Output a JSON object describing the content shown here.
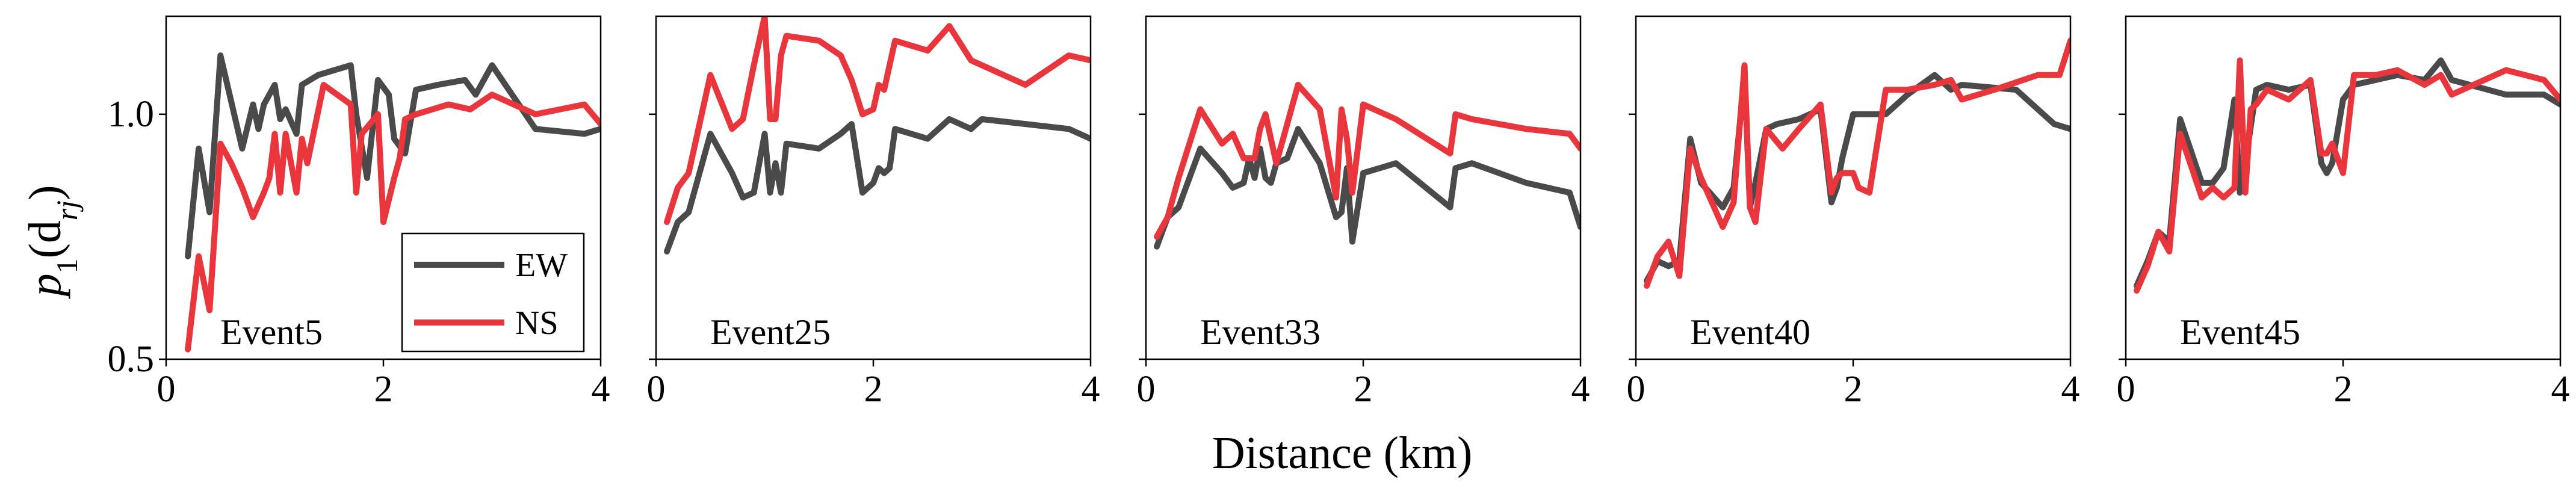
{
  "chart_data": {
    "type": "line",
    "ylabel_main": "p",
    "ylabel_sub": "1",
    "ylabel_arg": "(d",
    "ylabel_arg_sub": "rj",
    "ylabel_close": ")",
    "xlabel": "Distance (km)",
    "xlim": [
      0,
      4
    ],
    "ylim": [
      0.5,
      1.2
    ],
    "xticks": [
      0,
      2,
      4
    ],
    "xtick_labels": [
      "0",
      "2",
      "4"
    ],
    "yticks": [
      0.5,
      1.0
    ],
    "ytick_labels": [
      "0.5",
      "1.0"
    ],
    "colors": {
      "EW": "#4a4a4a",
      "NS": "#e8363c"
    },
    "legend": {
      "entries": [
        "EW",
        "NS"
      ],
      "placement": "lower-right of first panel"
    },
    "panels": [
      {
        "title": "Event5",
        "series": [
          {
            "name": "EW",
            "x": [
              0.2,
              0.3,
              0.4,
              0.5,
              0.7,
              0.8,
              0.85,
              0.9,
              1.0,
              1.05,
              1.1,
              1.2,
              1.25,
              1.4,
              1.7,
              1.75,
              1.85,
              1.95,
              2.05,
              2.1,
              2.2,
              2.3,
              2.5,
              2.75,
              2.85,
              3.0,
              3.4,
              3.85,
              4.0
            ],
            "y": [
              0.71,
              0.93,
              0.8,
              1.12,
              0.93,
              1.02,
              0.97,
              1.02,
              1.06,
              0.99,
              1.01,
              0.96,
              1.06,
              1.08,
              1.1,
              1.0,
              0.87,
              1.07,
              1.04,
              0.95,
              0.92,
              1.05,
              1.06,
              1.07,
              1.04,
              1.1,
              0.97,
              0.96,
              0.97
            ]
          },
          {
            "name": "NS",
            "x": [
              0.2,
              0.3,
              0.4,
              0.5,
              0.6,
              0.7,
              0.8,
              0.9,
              0.95,
              1.0,
              1.05,
              1.1,
              1.2,
              1.25,
              1.3,
              1.45,
              1.7,
              1.75,
              1.8,
              1.95,
              2.0,
              2.1,
              2.15,
              2.2,
              2.3,
              2.6,
              2.8,
              3.0,
              3.4,
              3.85,
              4.0
            ],
            "y": [
              0.52,
              0.71,
              0.6,
              0.94,
              0.9,
              0.85,
              0.79,
              0.84,
              0.87,
              0.96,
              0.84,
              0.96,
              0.84,
              0.95,
              0.9,
              1.06,
              1.02,
              0.84,
              0.96,
              1.0,
              0.78,
              0.87,
              0.91,
              0.99,
              1.0,
              1.02,
              1.01,
              1.04,
              1.0,
              1.02,
              0.98
            ]
          }
        ]
      },
      {
        "title": "Event25",
        "series": [
          {
            "name": "EW",
            "x": [
              0.1,
              0.2,
              0.3,
              0.5,
              0.7,
              0.8,
              0.9,
              1.0,
              1.05,
              1.1,
              1.15,
              1.2,
              1.5,
              1.7,
              1.8,
              1.9,
              2.0,
              2.05,
              2.1,
              2.15,
              2.2,
              2.5,
              2.7,
              2.9,
              3.0,
              3.4,
              3.8,
              4.0
            ],
            "y": [
              0.72,
              0.78,
              0.8,
              0.96,
              0.88,
              0.83,
              0.84,
              0.96,
              0.84,
              0.9,
              0.84,
              0.94,
              0.93,
              0.96,
              0.98,
              0.84,
              0.86,
              0.89,
              0.88,
              0.89,
              0.97,
              0.95,
              0.99,
              0.97,
              0.99,
              0.98,
              0.97,
              0.95
            ]
          },
          {
            "name": "NS",
            "x": [
              0.1,
              0.2,
              0.3,
              0.5,
              0.7,
              0.8,
              0.9,
              1.0,
              1.05,
              1.1,
              1.15,
              1.2,
              1.5,
              1.7,
              1.8,
              1.9,
              2.0,
              2.05,
              2.1,
              2.2,
              2.5,
              2.7,
              2.9,
              3.0,
              3.4,
              3.8,
              4.0
            ],
            "y": [
              0.78,
              0.85,
              0.88,
              1.08,
              0.97,
              0.99,
              1.1,
              1.2,
              0.99,
              0.99,
              1.12,
              1.16,
              1.15,
              1.12,
              1.07,
              1.0,
              1.01,
              1.06,
              1.05,
              1.15,
              1.13,
              1.18,
              1.11,
              1.1,
              1.06,
              1.12,
              1.11
            ]
          }
        ]
      },
      {
        "title": "Event33",
        "series": [
          {
            "name": "EW",
            "x": [
              0.1,
              0.2,
              0.3,
              0.5,
              0.7,
              0.8,
              0.9,
              0.95,
              1.0,
              1.05,
              1.1,
              1.15,
              1.2,
              1.3,
              1.4,
              1.6,
              1.75,
              1.8,
              1.85,
              1.9,
              2.0,
              2.3,
              2.8,
              2.85,
              3.0,
              3.5,
              3.9,
              4.0
            ],
            "y": [
              0.73,
              0.79,
              0.81,
              0.93,
              0.88,
              0.85,
              0.86,
              0.91,
              0.87,
              0.93,
              0.87,
              0.86,
              0.9,
              0.91,
              0.97,
              0.9,
              0.79,
              0.8,
              0.89,
              0.74,
              0.88,
              0.9,
              0.81,
              0.89,
              0.9,
              0.86,
              0.84,
              0.77
            ]
          },
          {
            "name": "NS",
            "x": [
              0.1,
              0.2,
              0.3,
              0.5,
              0.7,
              0.8,
              0.9,
              1.0,
              1.05,
              1.1,
              1.2,
              1.3,
              1.4,
              1.6,
              1.75,
              1.8,
              1.85,
              1.9,
              2.0,
              2.3,
              2.8,
              2.85,
              3.0,
              3.5,
              3.9,
              4.0
            ],
            "y": [
              0.75,
              0.79,
              0.87,
              1.01,
              0.94,
              0.96,
              0.91,
              0.91,
              0.97,
              1.0,
              0.9,
              0.98,
              1.06,
              1.01,
              0.83,
              1.01,
              0.95,
              0.84,
              1.02,
              0.99,
              0.92,
              1.0,
              0.99,
              0.97,
              0.96,
              0.93
            ]
          }
        ]
      },
      {
        "title": "Event40",
        "series": [
          {
            "name": "EW",
            "x": [
              0.1,
              0.2,
              0.3,
              0.4,
              0.5,
              0.6,
              0.8,
              0.9,
              1.0,
              1.05,
              1.1,
              1.2,
              1.3,
              1.5,
              1.7,
              1.8,
              1.85,
              1.9,
              2.0,
              2.3,
              2.5,
              2.75,
              2.9,
              3.0,
              3.5,
              3.85,
              4.0
            ],
            "y": [
              0.66,
              0.7,
              0.69,
              0.7,
              0.95,
              0.86,
              0.81,
              0.85,
              1.08,
              0.81,
              0.86,
              0.97,
              0.98,
              0.99,
              1.01,
              0.82,
              0.85,
              0.91,
              1.0,
              1.0,
              1.04,
              1.08,
              1.05,
              1.06,
              1.05,
              0.98,
              0.97
            ]
          },
          {
            "name": "NS",
            "x": [
              0.1,
              0.2,
              0.3,
              0.4,
              0.5,
              0.6,
              0.8,
              0.9,
              1.0,
              1.05,
              1.1,
              1.2,
              1.35,
              1.5,
              1.7,
              1.8,
              1.85,
              1.9,
              2.0,
              2.05,
              2.15,
              2.3,
              2.5,
              2.75,
              2.9,
              3.0,
              3.3,
              3.7,
              3.9,
              4.0
            ],
            "y": [
              0.65,
              0.71,
              0.74,
              0.67,
              0.93,
              0.87,
              0.77,
              0.82,
              1.1,
              0.81,
              0.78,
              0.97,
              0.93,
              0.97,
              1.02,
              0.84,
              0.87,
              0.88,
              0.88,
              0.85,
              0.84,
              1.05,
              1.05,
              1.06,
              1.07,
              1.03,
              1.05,
              1.08,
              1.08,
              1.15
            ]
          }
        ]
      },
      {
        "title": "Event45",
        "series": [
          {
            "name": "EW",
            "x": [
              0.1,
              0.2,
              0.3,
              0.4,
              0.5,
              0.7,
              0.8,
              0.9,
              1.0,
              1.05,
              1.1,
              1.2,
              1.3,
              1.5,
              1.7,
              1.8,
              1.85,
              1.9,
              2.0,
              2.1,
              2.3,
              2.5,
              2.75,
              2.9,
              3.0,
              3.5,
              3.85,
              4.0
            ],
            "y": [
              0.65,
              0.7,
              0.76,
              0.74,
              0.99,
              0.86,
              0.86,
              0.89,
              1.03,
              0.84,
              0.9,
              1.05,
              1.06,
              1.05,
              1.06,
              0.9,
              0.88,
              0.9,
              1.03,
              1.06,
              1.07,
              1.08,
              1.07,
              1.11,
              1.07,
              1.04,
              1.04,
              1.02
            ]
          },
          {
            "name": "NS",
            "x": [
              0.1,
              0.2,
              0.3,
              0.4,
              0.5,
              0.7,
              0.8,
              0.9,
              1.0,
              1.05,
              1.1,
              1.15,
              1.2,
              1.3,
              1.5,
              1.7,
              1.8,
              1.85,
              1.9,
              2.0,
              2.1,
              2.3,
              2.5,
              2.75,
              2.9,
              3.0,
              3.5,
              3.85,
              4.0
            ],
            "y": [
              0.64,
              0.69,
              0.76,
              0.72,
              0.96,
              0.83,
              0.85,
              0.83,
              0.85,
              1.11,
              0.84,
              1.01,
              1.02,
              1.05,
              1.03,
              1.07,
              0.92,
              0.92,
              0.94,
              0.88,
              1.08,
              1.08,
              1.09,
              1.06,
              1.08,
              1.04,
              1.09,
              1.07,
              1.03
            ]
          }
        ]
      }
    ]
  }
}
